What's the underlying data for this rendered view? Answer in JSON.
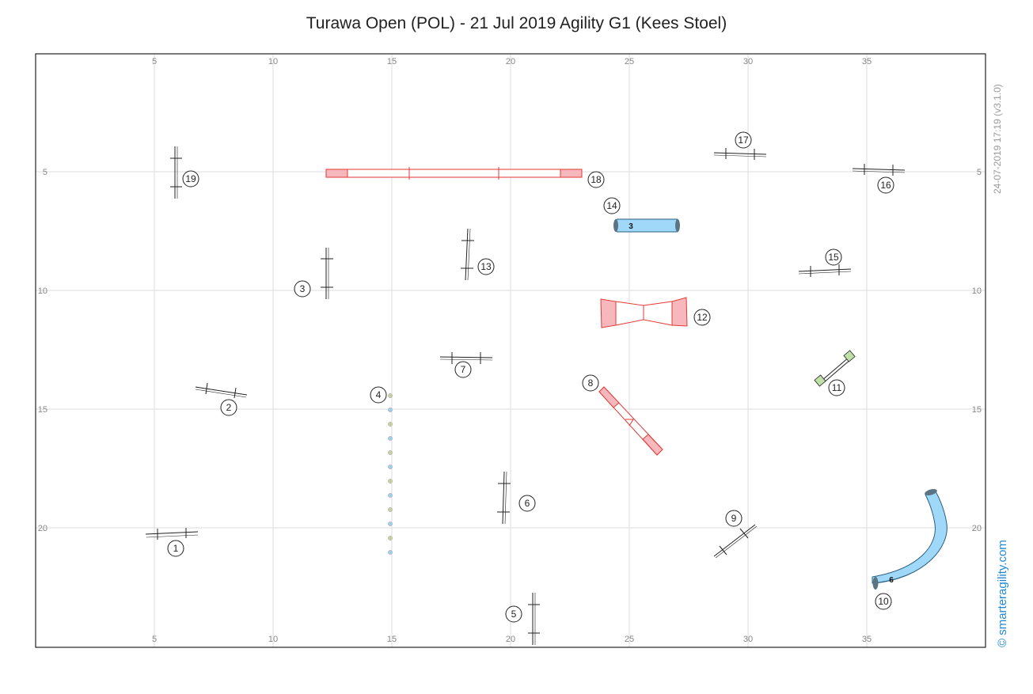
{
  "title": "Turawa Open (POL) - 21 Jul 2019 Agility G1 (Kees Stoel)",
  "timestamp": "24-07-2019 17:19  (v3.1.0)",
  "brand": "© smarteragility.com",
  "axes": {
    "x_ticks": [
      "5",
      "10",
      "15",
      "20",
      "25",
      "30",
      "35"
    ],
    "y_ticks": [
      "5",
      "10",
      "15",
      "20"
    ]
  },
  "colors": {
    "contact": "#f6b8bd",
    "contact_stroke": "#e53935",
    "tunnel": "#9fd8f8",
    "tunnel_cap": "#5a7484",
    "weave_green": "#c7d29e",
    "weave_blue": "#9fd0f0",
    "tire": "#bfe0a6"
  },
  "tunnels": {
    "straight_label": "3",
    "curved_label": "6"
  },
  "numbers": [
    "1",
    "2",
    "3",
    "4",
    "5",
    "6",
    "7",
    "8",
    "9",
    "10",
    "11",
    "12",
    "13",
    "14",
    "15",
    "16",
    "17",
    "18",
    "19"
  ]
}
